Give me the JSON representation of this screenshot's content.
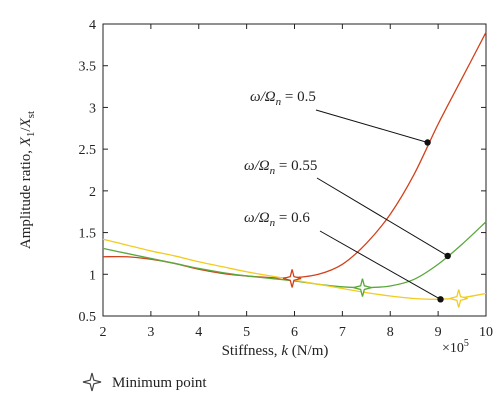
{
  "chart_data": {
    "type": "line",
    "xlabel_main": "Stiffness, ",
    "xlabel_var": "k",
    "xlabel_unit": " (N/m)",
    "x_multiplier": "×10",
    "x_multiplier_exp": "5",
    "ylabel_main": "Amplitude ratio, ",
    "ylabel_var": "X",
    "ylabel_sub1": "1",
    "ylabel_sep": "/",
    "ylabel_var2": "X",
    "ylabel_sub2": "st",
    "xlim": [
      2,
      10
    ],
    "ylim": [
      0.5,
      4
    ],
    "x_ticks": [
      "2",
      "3",
      "4",
      "5",
      "6",
      "7",
      "8",
      "9",
      "10"
    ],
    "y_ticks": [
      "0.5",
      "1",
      "1.5",
      "2",
      "2.5",
      "3",
      "3.5",
      "4"
    ],
    "grid": false,
    "series": [
      {
        "name": "ω/Ωn = 0.5",
        "color": "#d0421b",
        "x": [
          2.0,
          2.5,
          3.0,
          3.5,
          4.0,
          4.5,
          5.0,
          5.5,
          6.0,
          6.5,
          7.0,
          7.5,
          8.0,
          8.5,
          9.0,
          9.5,
          10.0
        ],
        "y": [
          1.21,
          1.21,
          1.18,
          1.13,
          1.06,
          1.01,
          0.98,
          0.96,
          0.96,
          1.0,
          1.12,
          1.37,
          1.72,
          2.2,
          2.8,
          3.35,
          3.9
        ],
        "minimum": [
          5.95,
          0.95
        ],
        "annotation_point": [
          8.78,
          2.58
        ]
      },
      {
        "name": "ω/Ωn = 0.55",
        "color": "#5aa83c",
        "x": [
          2.0,
          2.5,
          3.0,
          3.5,
          4.0,
          4.5,
          5.0,
          5.5,
          6.0,
          6.5,
          7.0,
          7.5,
          8.0,
          8.5,
          9.0,
          9.5,
          10.0
        ],
        "y": [
          1.31,
          1.25,
          1.19,
          1.13,
          1.07,
          1.02,
          0.98,
          0.95,
          0.92,
          0.88,
          0.85,
          0.84,
          0.86,
          0.94,
          1.12,
          1.36,
          1.63
        ],
        "minimum": [
          7.42,
          0.84
        ],
        "annotation_point": [
          9.2,
          1.22
        ]
      },
      {
        "name": "ω/Ωn = 0.6",
        "color": "#f2cc1f",
        "x": [
          2.0,
          2.5,
          3.0,
          3.5,
          4.0,
          4.5,
          5.0,
          5.5,
          6.0,
          6.5,
          7.0,
          7.5,
          8.0,
          8.5,
          9.0,
          9.5,
          10.0
        ],
        "y": [
          1.42,
          1.35,
          1.28,
          1.22,
          1.15,
          1.09,
          1.03,
          0.98,
          0.93,
          0.88,
          0.83,
          0.78,
          0.74,
          0.71,
          0.7,
          0.72,
          0.77
        ],
        "minimum": [
          9.43,
          0.71
        ],
        "annotation_point": [
          9.05,
          0.7
        ]
      }
    ],
    "annotations": [
      {
        "prefix": "ω/Ω",
        "sub": "n",
        "eq": " =  ",
        "value": "0.5",
        "series": 0
      },
      {
        "prefix": "ω/Ω",
        "sub": "n",
        "eq": " =  ",
        "value": "0.55",
        "series": 1
      },
      {
        "prefix": "ω/Ω",
        "sub": "n",
        "eq": " =  ",
        "value": "0.6",
        "series": 2
      }
    ],
    "legend": {
      "label": "Minimum point",
      "icon": "star-icon",
      "placement": "bottom-left"
    }
  }
}
